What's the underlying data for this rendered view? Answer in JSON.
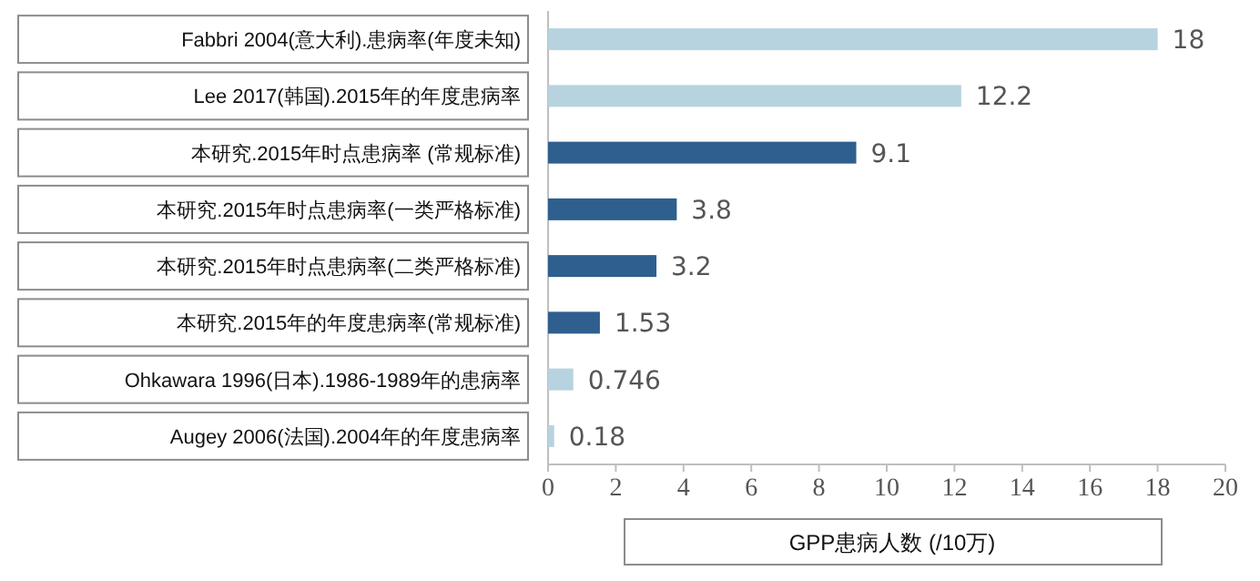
{
  "chart_data": {
    "type": "bar",
    "orientation": "horizontal",
    "categories": [
      "Fabbri 2004(意大利).患病率(年度未知)",
      "Lee 2017(韩国).2015年的年度患病率",
      "本研究.2015年时点患病率 (常规标准)",
      "本研究.2015年时点患病率(一类严格标准)",
      "本研究.2015年时点患病率(二类严格标准)",
      "本研究.2015年的年度患病率(常规标准)",
      "Ohkawara 1996(日本).1986-1989年的患病率",
      "Augey 2006(法国).2004年的年度患病率"
    ],
    "values": [
      18,
      12.2,
      9.1,
      3.8,
      3.2,
      1.53,
      0.746,
      0.18
    ],
    "colors": [
      "#b7d3df",
      "#b7d3df",
      "#2e5f8e",
      "#2e5f8e",
      "#2e5f8e",
      "#2e5f8e",
      "#b7d3df",
      "#b7d3df"
    ],
    "data_labels": true,
    "xlim": [
      0,
      20
    ],
    "xticks": [
      0,
      2,
      4,
      6,
      8,
      10,
      12,
      14,
      16,
      18,
      20
    ],
    "xlabel": "GPP患病人数 (/10万)"
  }
}
